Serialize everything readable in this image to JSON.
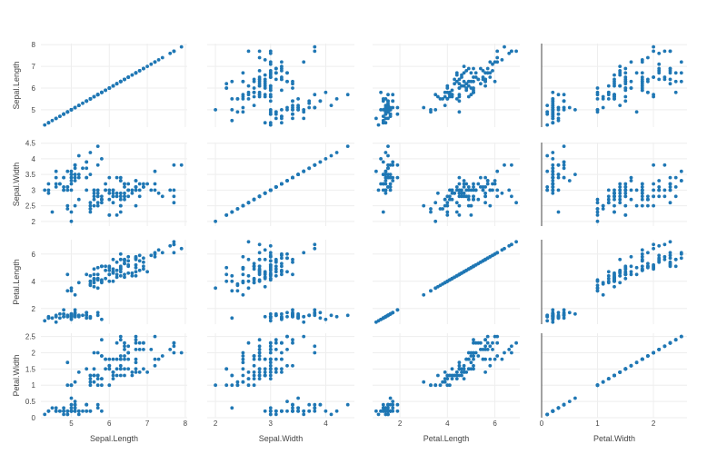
{
  "chart_data": {
    "type": "scatter",
    "matrix": "scatter-plot-matrix",
    "point_color": "#1f77b4",
    "grid": true,
    "dimensions": [
      {
        "label": "Sepal.Length",
        "range": [
          4.2,
          8.05
        ],
        "ticks": [
          5,
          6,
          7,
          8
        ],
        "values": [
          5.1,
          4.9,
          4.7,
          4.6,
          5.0,
          5.4,
          4.6,
          5.0,
          4.4,
          4.9,
          5.4,
          4.8,
          4.8,
          4.3,
          5.8,
          5.7,
          5.4,
          5.1,
          5.7,
          5.1,
          5.4,
          5.1,
          4.6,
          5.1,
          4.8,
          5.0,
          5.0,
          5.2,
          5.2,
          4.7,
          4.8,
          5.4,
          5.2,
          5.5,
          4.9,
          5.0,
          5.5,
          4.9,
          4.4,
          5.1,
          5.0,
          4.5,
          4.4,
          5.0,
          5.1,
          4.8,
          5.1,
          4.6,
          5.3,
          5.0,
          7.0,
          6.4,
          6.9,
          5.5,
          6.5,
          5.7,
          6.3,
          4.9,
          6.6,
          5.2,
          5.0,
          5.9,
          6.0,
          6.1,
          5.6,
          6.7,
          5.6,
          5.8,
          6.2,
          5.6,
          5.9,
          6.1,
          6.3,
          6.1,
          6.4,
          6.6,
          6.8,
          6.7,
          6.0,
          5.7,
          5.5,
          5.5,
          5.8,
          6.0,
          5.4,
          6.0,
          6.7,
          6.3,
          5.6,
          5.5,
          5.5,
          6.1,
          5.8,
          5.0,
          5.6,
          5.7,
          5.7,
          6.2,
          5.1,
          5.7,
          6.3,
          5.8,
          7.1,
          6.3,
          6.5,
          7.6,
          4.9,
          7.3,
          6.7,
          7.2,
          6.5,
          6.4,
          6.8,
          5.7,
          5.8,
          6.4,
          6.5,
          7.7,
          7.7,
          6.0,
          6.9,
          5.6,
          7.7,
          6.3,
          6.7,
          7.2,
          6.2,
          6.1,
          6.4,
          7.2,
          7.4,
          7.9,
          6.4,
          6.3,
          6.1,
          7.7,
          6.3,
          6.4,
          6.0,
          6.9,
          6.7,
          6.9,
          5.8,
          6.8,
          6.7,
          6.7,
          6.3,
          6.5,
          6.2,
          5.9
        ]
      },
      {
        "label": "Sepal.Width",
        "range": [
          1.85,
          4.52
        ],
        "ticks": [
          2,
          3,
          4
        ],
        "tick_labels_y": [
          "2",
          "2.5",
          "3",
          "3.5",
          "4",
          "4.5"
        ],
        "ticks_y": [
          2,
          2.5,
          3,
          3.5,
          4,
          4.5
        ],
        "values": [
          3.5,
          3.0,
          3.2,
          3.1,
          3.6,
          3.9,
          3.4,
          3.4,
          2.9,
          3.1,
          3.7,
          3.4,
          3.0,
          3.0,
          4.0,
          4.4,
          3.9,
          3.5,
          3.8,
          3.8,
          3.4,
          3.7,
          3.6,
          3.3,
          3.4,
          3.0,
          3.4,
          3.5,
          3.4,
          3.2,
          3.1,
          3.4,
          4.1,
          4.2,
          3.1,
          3.2,
          3.5,
          3.6,
          3.0,
          3.4,
          3.5,
          2.3,
          3.2,
          3.5,
          3.8,
          3.0,
          3.8,
          3.2,
          3.7,
          3.3,
          3.2,
          3.2,
          3.1,
          2.3,
          2.8,
          2.8,
          3.3,
          2.4,
          2.9,
          2.7,
          2.0,
          3.0,
          2.2,
          2.9,
          2.9,
          3.1,
          3.0,
          2.7,
          2.2,
          2.5,
          3.2,
          2.8,
          2.5,
          2.8,
          2.9,
          3.0,
          2.8,
          3.0,
          2.9,
          2.6,
          2.4,
          2.4,
          2.7,
          2.7,
          3.0,
          3.4,
          3.1,
          2.3,
          3.0,
          2.5,
          2.6,
          3.0,
          2.6,
          2.3,
          2.7,
          3.0,
          2.9,
          2.9,
          2.5,
          2.8,
          3.3,
          2.7,
          3.0,
          2.9,
          3.0,
          3.0,
          2.5,
          2.9,
          2.5,
          3.6,
          3.2,
          2.7,
          3.0,
          2.5,
          2.8,
          3.2,
          3.0,
          3.8,
          2.6,
          2.2,
          3.2,
          2.8,
          2.8,
          2.7,
          3.3,
          3.2,
          2.8,
          3.0,
          2.8,
          3.0,
          2.8,
          3.8,
          2.8,
          2.8,
          2.6,
          3.0,
          3.4,
          3.1,
          3.0,
          3.1,
          3.1,
          3.1,
          2.7,
          3.2,
          3.3,
          3.0,
          2.5,
          3.0,
          3.4,
          3.0
        ]
      },
      {
        "label": "Petal.Length",
        "range": [
          0.85,
          7.05
        ],
        "ticks": [
          2,
          4,
          6
        ],
        "values": [
          1.4,
          1.4,
          1.3,
          1.5,
          1.4,
          1.7,
          1.4,
          1.5,
          1.4,
          1.5,
          1.5,
          1.6,
          1.4,
          1.1,
          1.2,
          1.5,
          1.3,
          1.4,
          1.7,
          1.5,
          1.7,
          1.5,
          1.0,
          1.7,
          1.9,
          1.6,
          1.6,
          1.5,
          1.4,
          1.6,
          1.6,
          1.5,
          1.5,
          1.4,
          1.5,
          1.2,
          1.3,
          1.4,
          1.3,
          1.5,
          1.3,
          1.3,
          1.3,
          1.6,
          1.9,
          1.4,
          1.6,
          1.4,
          1.5,
          1.4,
          4.7,
          4.5,
          4.9,
          4.0,
          4.6,
          4.5,
          4.7,
          3.3,
          4.6,
          3.9,
          3.5,
          4.2,
          4.0,
          4.7,
          3.6,
          4.4,
          4.5,
          4.1,
          4.5,
          3.9,
          4.8,
          4.0,
          4.9,
          4.7,
          4.3,
          4.4,
          4.8,
          5.0,
          4.5,
          3.5,
          3.8,
          3.7,
          3.9,
          5.1,
          4.5,
          4.5,
          4.7,
          4.4,
          4.1,
          4.0,
          4.4,
          4.6,
          4.0,
          3.3,
          4.2,
          4.2,
          4.2,
          4.3,
          3.0,
          4.1,
          6.0,
          5.1,
          5.9,
          5.6,
          5.8,
          6.6,
          4.5,
          6.3,
          5.8,
          6.1,
          5.1,
          5.3,
          5.5,
          5.0,
          5.1,
          5.3,
          5.5,
          6.7,
          6.9,
          5.0,
          5.7,
          4.9,
          6.7,
          4.9,
          5.7,
          6.0,
          4.8,
          4.9,
          5.6,
          5.8,
          6.1,
          6.4,
          5.6,
          5.1,
          5.6,
          6.1,
          5.6,
          5.5,
          4.8,
          5.4,
          5.6,
          5.1,
          5.1,
          5.9,
          5.7,
          5.2,
          5.0,
          5.2,
          5.4,
          5.1
        ]
      },
      {
        "label": "Petal.Width",
        "range": [
          0,
          2.6
        ],
        "ticks": [
          0,
          1,
          2
        ],
        "zeroline": true,
        "tick_labels_y": [
          "0",
          "0.5",
          "1",
          "1.5",
          "2",
          "2.5"
        ],
        "ticks_y": [
          0,
          0.5,
          1,
          1.5,
          2,
          2.5
        ],
        "values": [
          0.2,
          0.2,
          0.2,
          0.2,
          0.2,
          0.4,
          0.3,
          0.2,
          0.2,
          0.1,
          0.2,
          0.2,
          0.1,
          0.1,
          0.2,
          0.4,
          0.4,
          0.3,
          0.3,
          0.3,
          0.2,
          0.4,
          0.2,
          0.5,
          0.2,
          0.2,
          0.4,
          0.2,
          0.2,
          0.2,
          0.2,
          0.4,
          0.1,
          0.2,
          0.2,
          0.2,
          0.2,
          0.1,
          0.2,
          0.2,
          0.3,
          0.3,
          0.2,
          0.6,
          0.4,
          0.3,
          0.2,
          0.2,
          0.2,
          0.2,
          1.4,
          1.5,
          1.5,
          1.3,
          1.5,
          1.3,
          1.6,
          1.0,
          1.3,
          1.4,
          1.0,
          1.5,
          1.0,
          1.4,
          1.3,
          1.4,
          1.5,
          1.0,
          1.5,
          1.1,
          1.8,
          1.3,
          1.5,
          1.2,
          1.3,
          1.4,
          1.4,
          1.7,
          1.5,
          1.0,
          1.1,
          1.0,
          1.2,
          1.6,
          1.5,
          1.6,
          1.5,
          1.3,
          1.3,
          1.3,
          1.2,
          1.4,
          1.2,
          1.0,
          1.3,
          1.2,
          1.3,
          1.3,
          1.1,
          1.3,
          2.5,
          1.9,
          2.1,
          1.8,
          2.2,
          2.1,
          1.7,
          1.8,
          1.8,
          2.5,
          2.0,
          1.9,
          2.1,
          2.0,
          2.4,
          2.3,
          1.8,
          2.2,
          2.3,
          1.5,
          2.3,
          2.0,
          2.0,
          1.8,
          2.1,
          1.8,
          1.8,
          1.8,
          2.1,
          1.6,
          1.9,
          2.0,
          2.2,
          1.5,
          1.4,
          2.3,
          2.4,
          1.8,
          1.8,
          2.1,
          2.4,
          2.3,
          1.9,
          2.3,
          2.5,
          2.3,
          1.9,
          2.0,
          2.3,
          1.8
        ]
      }
    ]
  }
}
